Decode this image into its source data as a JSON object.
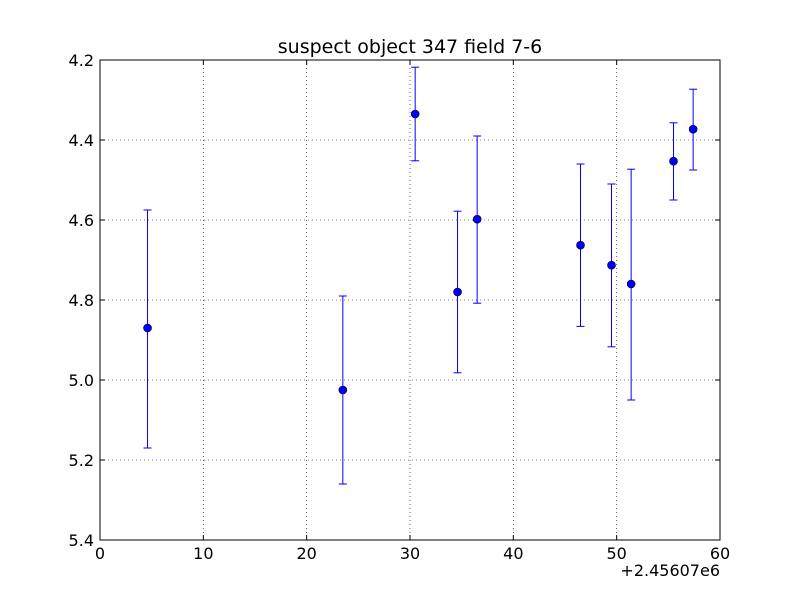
{
  "chart_data": {
    "type": "scatter",
    "title": "suspect object 347 field 7-6",
    "xlabel": "",
    "ylabel": "",
    "x_offset_label": "+2.45607e6",
    "xlim": [
      0,
      60
    ],
    "ylim": [
      5.4,
      4.2
    ],
    "y_inverted": true,
    "grid": true,
    "x_ticks": [
      "0",
      "10",
      "20",
      "30",
      "40",
      "50",
      "60"
    ],
    "y_ticks": [
      "4.2",
      "4.4",
      "4.6",
      "4.8",
      "5.0",
      "5.2",
      "5.4"
    ],
    "marker_color": "#0000ff",
    "errorbar_color": "#0000ff",
    "series": [
      {
        "x": [
          4.6,
          23.5,
          30.5,
          34.6,
          36.5,
          46.5,
          49.5,
          51.4,
          55.5,
          57.4
        ],
        "y": [
          4.87,
          5.025,
          4.335,
          4.78,
          4.598,
          4.663,
          4.713,
          4.76,
          4.453,
          4.373
        ],
        "yerr_low": [
          5.17,
          5.26,
          4.452,
          4.982,
          4.808,
          4.866,
          4.917,
          5.05,
          4.55,
          4.475
        ],
        "yerr_high": [
          4.575,
          4.79,
          4.218,
          4.578,
          4.39,
          4.46,
          4.51,
          4.473,
          4.357,
          4.273
        ]
      }
    ]
  }
}
